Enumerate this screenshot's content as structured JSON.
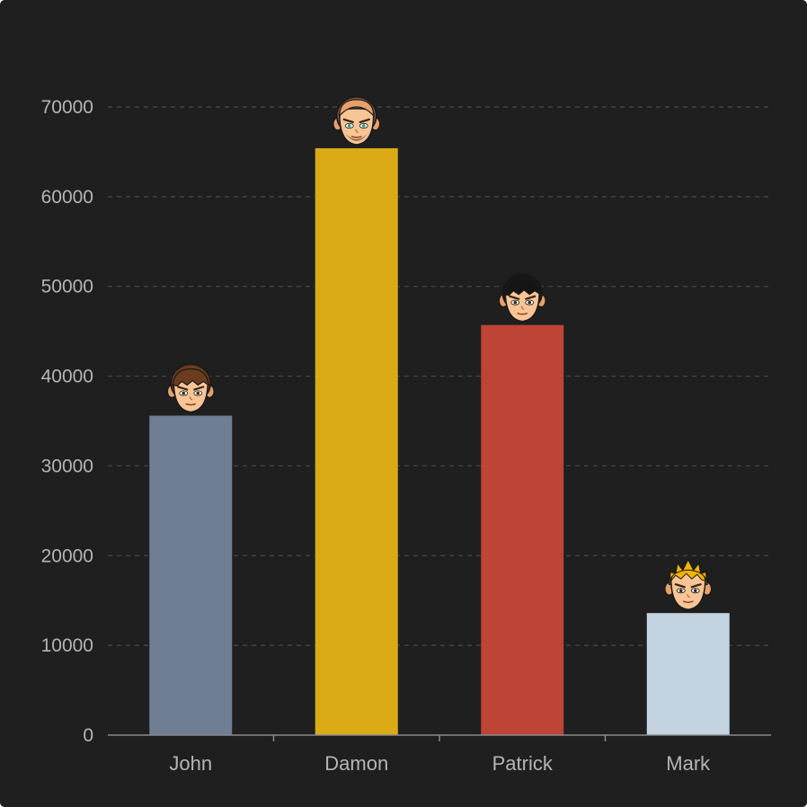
{
  "chart_data": {
    "type": "bar",
    "categories": [
      "John",
      "Damon",
      "Patrick",
      "Mark"
    ],
    "values": [
      35600,
      65400,
      45700,
      13600
    ],
    "colors": [
      "#6f7d95",
      "#dbab16",
      "#be4435",
      "#c3d4e0"
    ],
    "avatars": [
      {
        "name": "brown-hair-boy-avatar-icon",
        "hair": "#6b3d1e",
        "style": "fringe"
      },
      {
        "name": "bald-bearded-man-avatar-icon",
        "hair": "#7a5638",
        "style": "bald"
      },
      {
        "name": "black-hair-boy-avatar-icon",
        "hair": "#151515",
        "style": "fringe"
      },
      {
        "name": "blonde-spiky-boy-avatar-icon",
        "hair": "#f4b400",
        "style": "spiky"
      }
    ],
    "y_ticks": [
      "0",
      "10000",
      "20000",
      "30000",
      "40000",
      "50000",
      "60000",
      "70000"
    ],
    "ylim": [
      0,
      70000
    ],
    "grid": true,
    "background": "#1f1f1f",
    "grid_color": "#4a4a4a",
    "axis_color": "#8a8a8a",
    "label_color": "#b5b5b5"
  }
}
